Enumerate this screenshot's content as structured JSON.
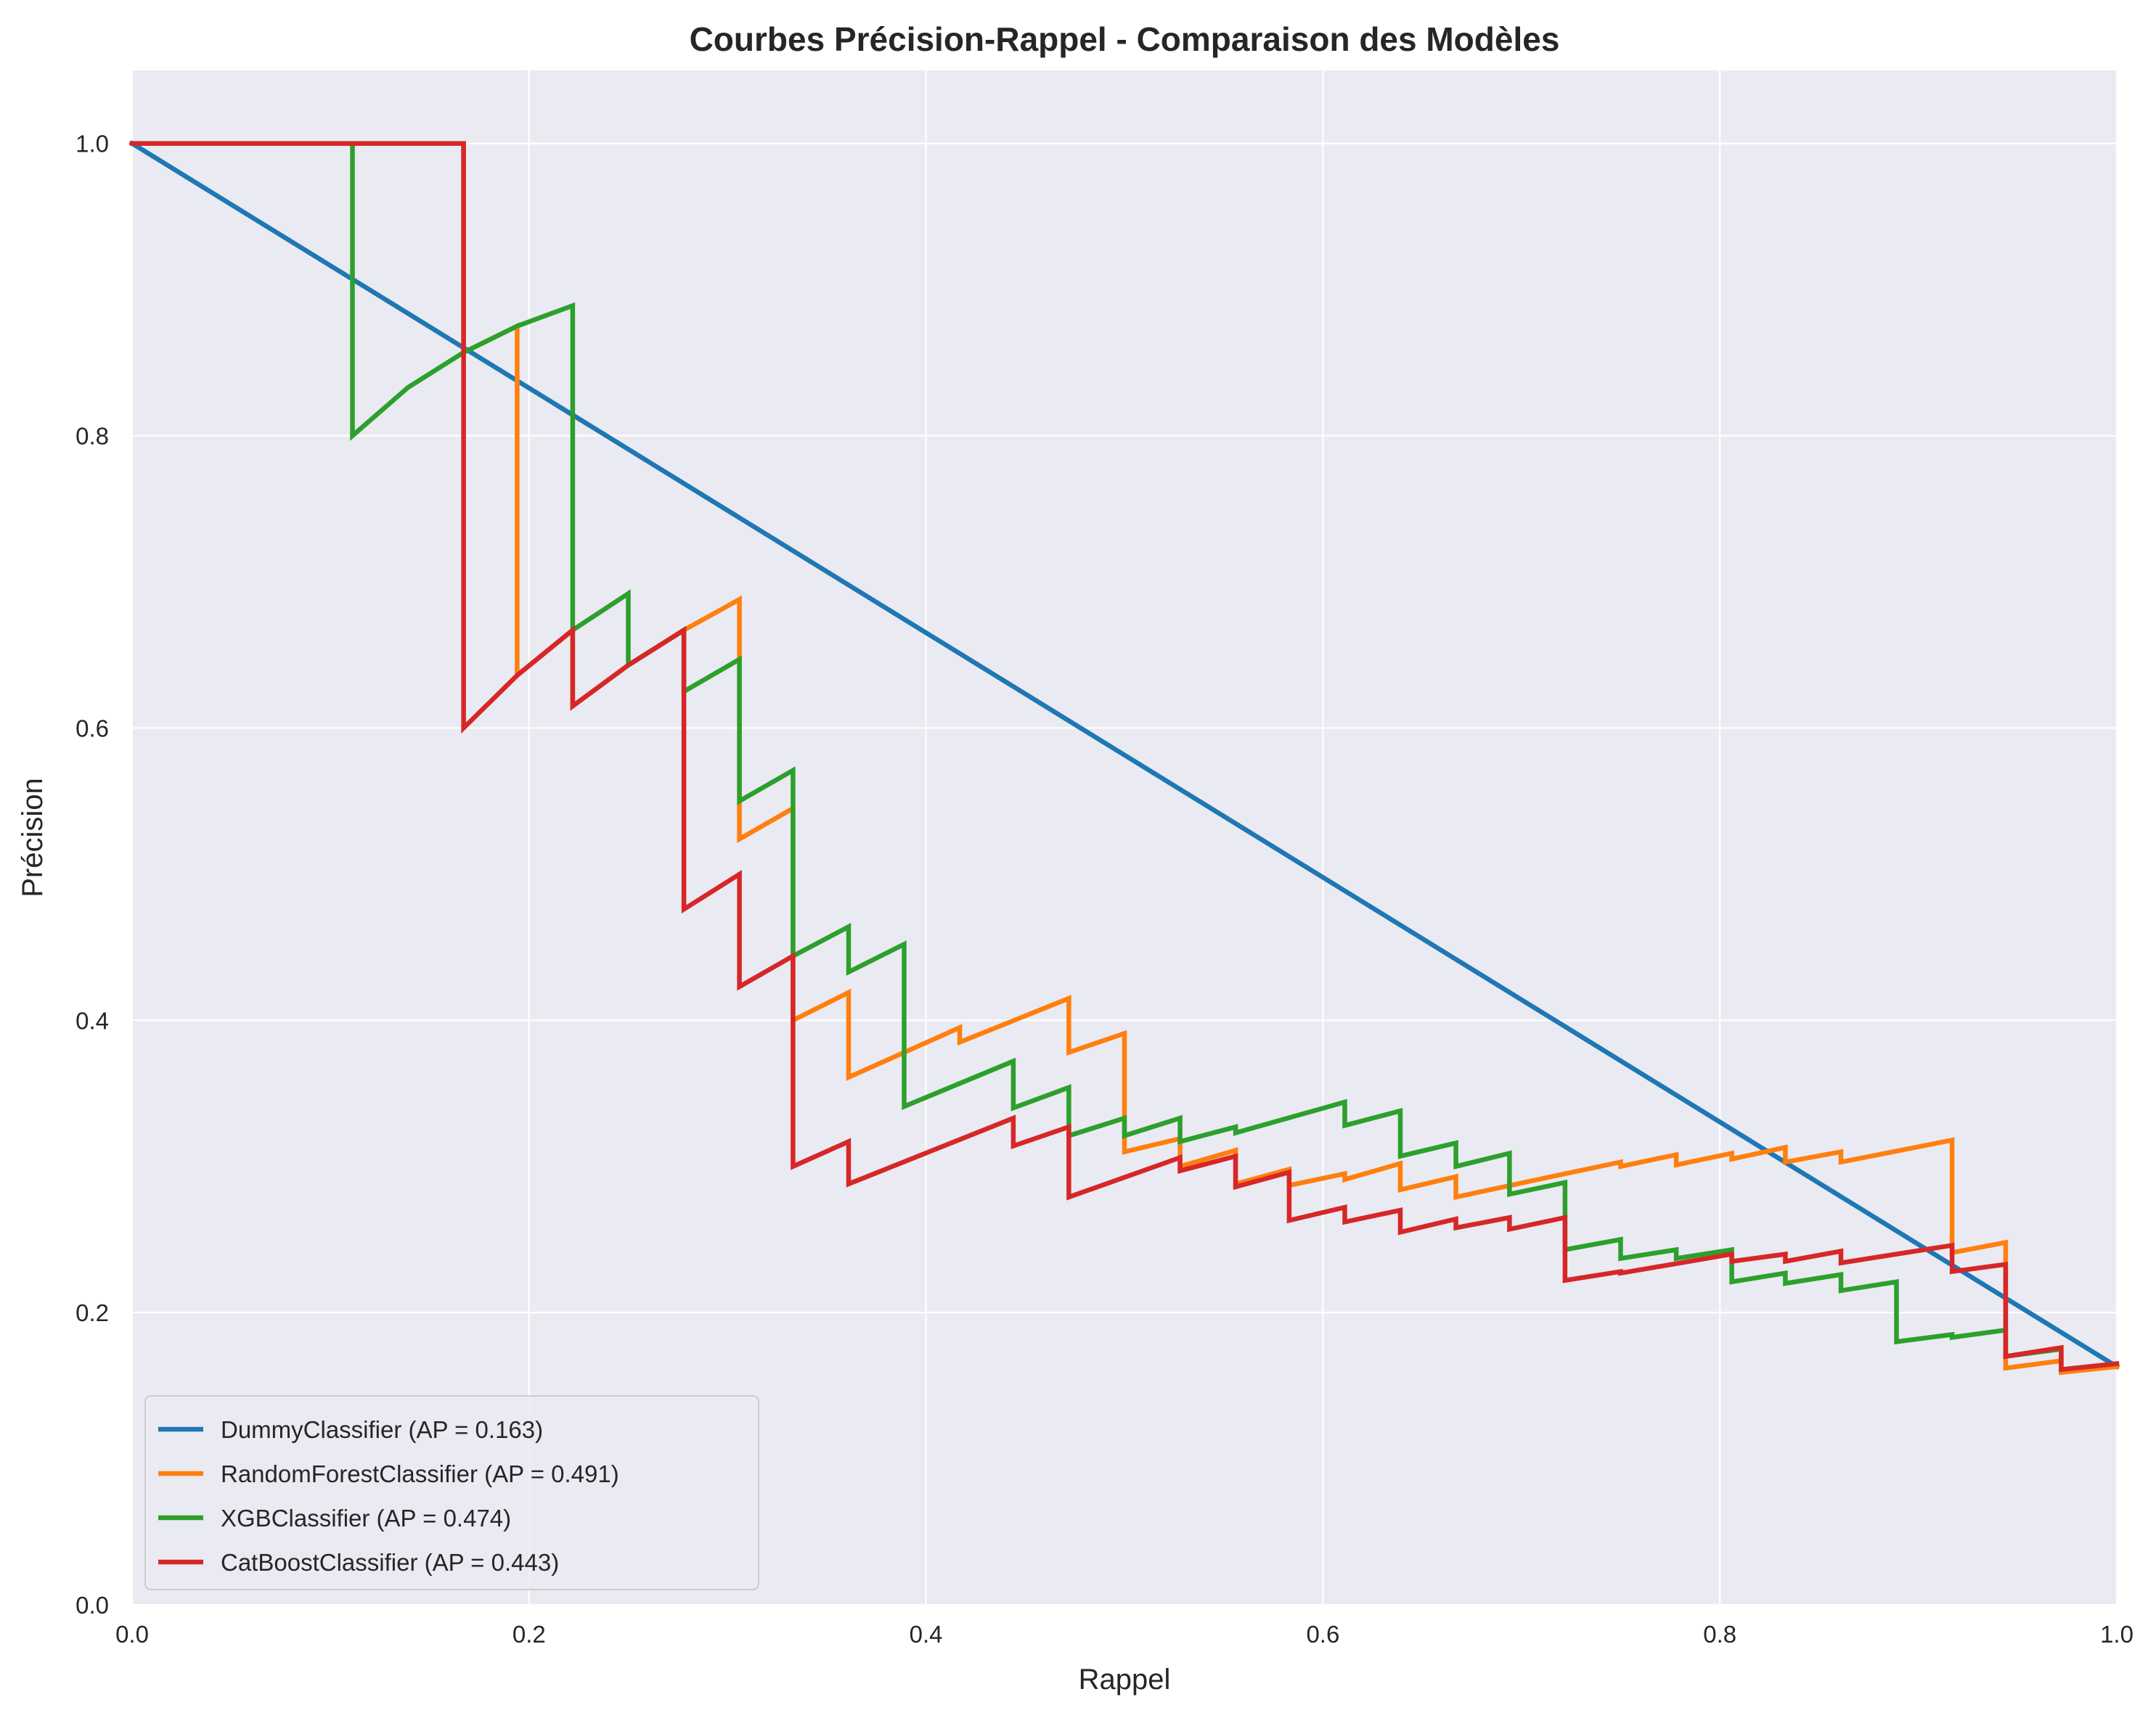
{
  "chart_data": {
    "type": "line",
    "title": "Courbes Précision-Rappel - Comparaison des Modèles",
    "xlabel": "Rappel",
    "ylabel": "Précision",
    "xlim": [
      0,
      1
    ],
    "ylim": [
      0,
      1.05
    ],
    "xticks": [
      0.0,
      0.2,
      0.4,
      0.6,
      0.8,
      1.0
    ],
    "xtick_labels": [
      "0.0",
      "0.2",
      "0.4",
      "0.6",
      "0.8",
      "1.0"
    ],
    "yticks": [
      0.0,
      0.2,
      0.4,
      0.6,
      0.8,
      1.0
    ],
    "ytick_labels": [
      "0.0",
      "0.2",
      "0.4",
      "0.6",
      "0.8",
      "1.0"
    ],
    "grid": true,
    "legend_position": "lower-left",
    "background_color": "#eaeaf2",
    "grid_color": "#ffffff",
    "series": [
      {
        "name": "DummyClassifier (AP = 0.163)",
        "color": "#1f77b4",
        "points": [
          [
            0.0,
            1.0
          ],
          [
            1.0,
            0.163
          ]
        ]
      },
      {
        "name": "RandomForestClassifier (AP = 0.491)",
        "color": "#ff7f0e",
        "points": [
          [
            0.0,
            1.0
          ],
          [
            0.167,
            1.0
          ],
          [
            0.167,
            0.857
          ],
          [
            0.194,
            0.875
          ],
          [
            0.194,
            0.636
          ],
          [
            0.222,
            0.667
          ],
          [
            0.222,
            0.615
          ],
          [
            0.25,
            0.643
          ],
          [
            0.278,
            0.667
          ],
          [
            0.306,
            0.688
          ],
          [
            0.306,
            0.524
          ],
          [
            0.333,
            0.545
          ],
          [
            0.333,
            0.4
          ],
          [
            0.361,
            0.419
          ],
          [
            0.361,
            0.361
          ],
          [
            0.389,
            0.378
          ],
          [
            0.417,
            0.395
          ],
          [
            0.417,
            0.385
          ],
          [
            0.472,
            0.415
          ],
          [
            0.472,
            0.378
          ],
          [
            0.5,
            0.391
          ],
          [
            0.5,
            0.31
          ],
          [
            0.528,
            0.319
          ],
          [
            0.528,
            0.3
          ],
          [
            0.556,
            0.311
          ],
          [
            0.556,
            0.288
          ],
          [
            0.583,
            0.298
          ],
          [
            0.583,
            0.287
          ],
          [
            0.611,
            0.295
          ],
          [
            0.611,
            0.291
          ],
          [
            0.639,
            0.302
          ],
          [
            0.639,
            0.284
          ],
          [
            0.667,
            0.293
          ],
          [
            0.667,
            0.279
          ],
          [
            0.722,
            0.295
          ],
          [
            0.75,
            0.303
          ],
          [
            0.75,
            0.3
          ],
          [
            0.778,
            0.308
          ],
          [
            0.778,
            0.301
          ],
          [
            0.806,
            0.309
          ],
          [
            0.806,
            0.305
          ],
          [
            0.833,
            0.313
          ],
          [
            0.833,
            0.303
          ],
          [
            0.861,
            0.31
          ],
          [
            0.861,
            0.303
          ],
          [
            0.917,
            0.318
          ],
          [
            0.917,
            0.241
          ],
          [
            0.944,
            0.248
          ],
          [
            0.944,
            0.162
          ],
          [
            0.972,
            0.167
          ],
          [
            0.972,
            0.159
          ],
          [
            1.0,
            0.163
          ]
        ]
      },
      {
        "name": "XGBClassifier (AP = 0.474)",
        "color": "#2ca02c",
        "points": [
          [
            0.0,
            1.0
          ],
          [
            0.111,
            1.0
          ],
          [
            0.111,
            0.8
          ],
          [
            0.139,
            0.833
          ],
          [
            0.167,
            0.857
          ],
          [
            0.194,
            0.875
          ],
          [
            0.222,
            0.889
          ],
          [
            0.222,
            0.667
          ],
          [
            0.25,
            0.692
          ],
          [
            0.25,
            0.643
          ],
          [
            0.278,
            0.667
          ],
          [
            0.278,
            0.625
          ],
          [
            0.306,
            0.647
          ],
          [
            0.306,
            0.55
          ],
          [
            0.333,
            0.571
          ],
          [
            0.333,
            0.444
          ],
          [
            0.361,
            0.464
          ],
          [
            0.361,
            0.433
          ],
          [
            0.389,
            0.452
          ],
          [
            0.389,
            0.341
          ],
          [
            0.444,
            0.372
          ],
          [
            0.444,
            0.34
          ],
          [
            0.472,
            0.354
          ],
          [
            0.472,
            0.321
          ],
          [
            0.5,
            0.333
          ],
          [
            0.5,
            0.321
          ],
          [
            0.528,
            0.333
          ],
          [
            0.528,
            0.317
          ],
          [
            0.556,
            0.327
          ],
          [
            0.556,
            0.323
          ],
          [
            0.611,
            0.344
          ],
          [
            0.611,
            0.328
          ],
          [
            0.639,
            0.338
          ],
          [
            0.639,
            0.307
          ],
          [
            0.667,
            0.316
          ],
          [
            0.667,
            0.3
          ],
          [
            0.694,
            0.309
          ],
          [
            0.694,
            0.281
          ],
          [
            0.722,
            0.289
          ],
          [
            0.722,
            0.243
          ],
          [
            0.75,
            0.25
          ],
          [
            0.75,
            0.237
          ],
          [
            0.778,
            0.243
          ],
          [
            0.778,
            0.237
          ],
          [
            0.806,
            0.243
          ],
          [
            0.806,
            0.221
          ],
          [
            0.833,
            0.227
          ],
          [
            0.833,
            0.22
          ],
          [
            0.861,
            0.226
          ],
          [
            0.861,
            0.215
          ],
          [
            0.889,
            0.221
          ],
          [
            0.889,
            0.18
          ],
          [
            0.917,
            0.185
          ],
          [
            0.917,
            0.183
          ],
          [
            0.944,
            0.188
          ],
          [
            0.944,
            0.17
          ],
          [
            0.972,
            0.175
          ],
          [
            0.972,
            0.161
          ],
          [
            1.0,
            0.165
          ]
        ]
      },
      {
        "name": "CatBoostClassifier (AP = 0.443)",
        "color": "#d62728",
        "points": [
          [
            0.0,
            1.0
          ],
          [
            0.167,
            1.0
          ],
          [
            0.167,
            0.6
          ],
          [
            0.194,
            0.636
          ],
          [
            0.222,
            0.667
          ],
          [
            0.222,
            0.615
          ],
          [
            0.25,
            0.643
          ],
          [
            0.278,
            0.667
          ],
          [
            0.278,
            0.476
          ],
          [
            0.306,
            0.5
          ],
          [
            0.306,
            0.423
          ],
          [
            0.333,
            0.444
          ],
          [
            0.333,
            0.3
          ],
          [
            0.361,
            0.317
          ],
          [
            0.361,
            0.288
          ],
          [
            0.444,
            0.333
          ],
          [
            0.444,
            0.314
          ],
          [
            0.472,
            0.327
          ],
          [
            0.472,
            0.279
          ],
          [
            0.528,
            0.306
          ],
          [
            0.528,
            0.297
          ],
          [
            0.556,
            0.307
          ],
          [
            0.556,
            0.286
          ],
          [
            0.583,
            0.296
          ],
          [
            0.583,
            0.263
          ],
          [
            0.611,
            0.272
          ],
          [
            0.611,
            0.262
          ],
          [
            0.639,
            0.27
          ],
          [
            0.639,
            0.255
          ],
          [
            0.667,
            0.264
          ],
          [
            0.667,
            0.258
          ],
          [
            0.694,
            0.265
          ],
          [
            0.694,
            0.257
          ],
          [
            0.722,
            0.265
          ],
          [
            0.722,
            0.222
          ],
          [
            0.75,
            0.228
          ],
          [
            0.75,
            0.227
          ],
          [
            0.806,
            0.24
          ],
          [
            0.806,
            0.235
          ],
          [
            0.833,
            0.24
          ],
          [
            0.833,
            0.235
          ],
          [
            0.861,
            0.242
          ],
          [
            0.861,
            0.234
          ],
          [
            0.917,
            0.246
          ],
          [
            0.917,
            0.228
          ],
          [
            0.944,
            0.233
          ],
          [
            0.944,
            0.17
          ],
          [
            0.972,
            0.176
          ],
          [
            0.972,
            0.161
          ],
          [
            1.0,
            0.165
          ]
        ]
      }
    ]
  }
}
